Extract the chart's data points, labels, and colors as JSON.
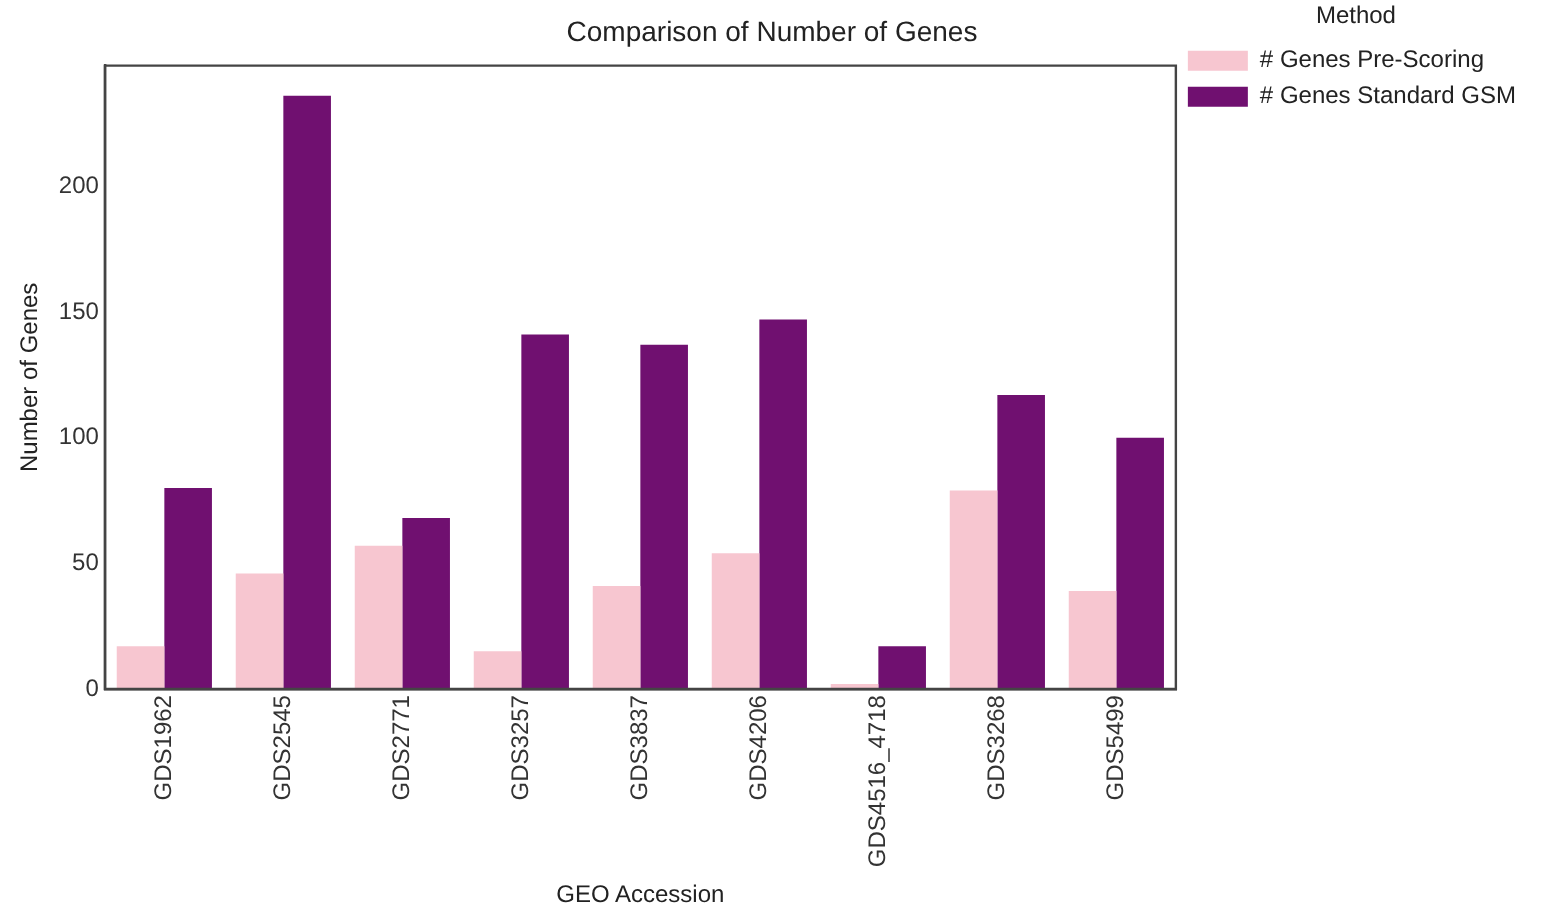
{
  "chart_data": {
    "type": "bar",
    "title": "Comparison of Number of Genes",
    "xlabel": "GEO Accession",
    "ylabel": "Number of Genes",
    "legend_title": "Method",
    "categories": [
      "GDS1962",
      "GDS2545",
      "GDS2771",
      "GDS3257",
      "GDS3837",
      "GDS4206",
      "GDS4516_4718",
      "GDS3268",
      "GDS5499"
    ],
    "series": [
      {
        "name": "# Genes Pre-Scoring",
        "color": "#f7c6d0",
        "values": [
          17,
          46,
          57,
          15,
          41,
          54,
          2,
          79,
          39
        ]
      },
      {
        "name": "# Genes Standard GSM",
        "color": "#701070",
        "values": [
          80,
          236,
          68,
          141,
          137,
          147,
          17,
          117,
          100
        ]
      }
    ],
    "ylim": [
      0,
      248
    ],
    "yticks": [
      0,
      50,
      100,
      150,
      200
    ],
    "grid": false,
    "legend": "top right"
  }
}
